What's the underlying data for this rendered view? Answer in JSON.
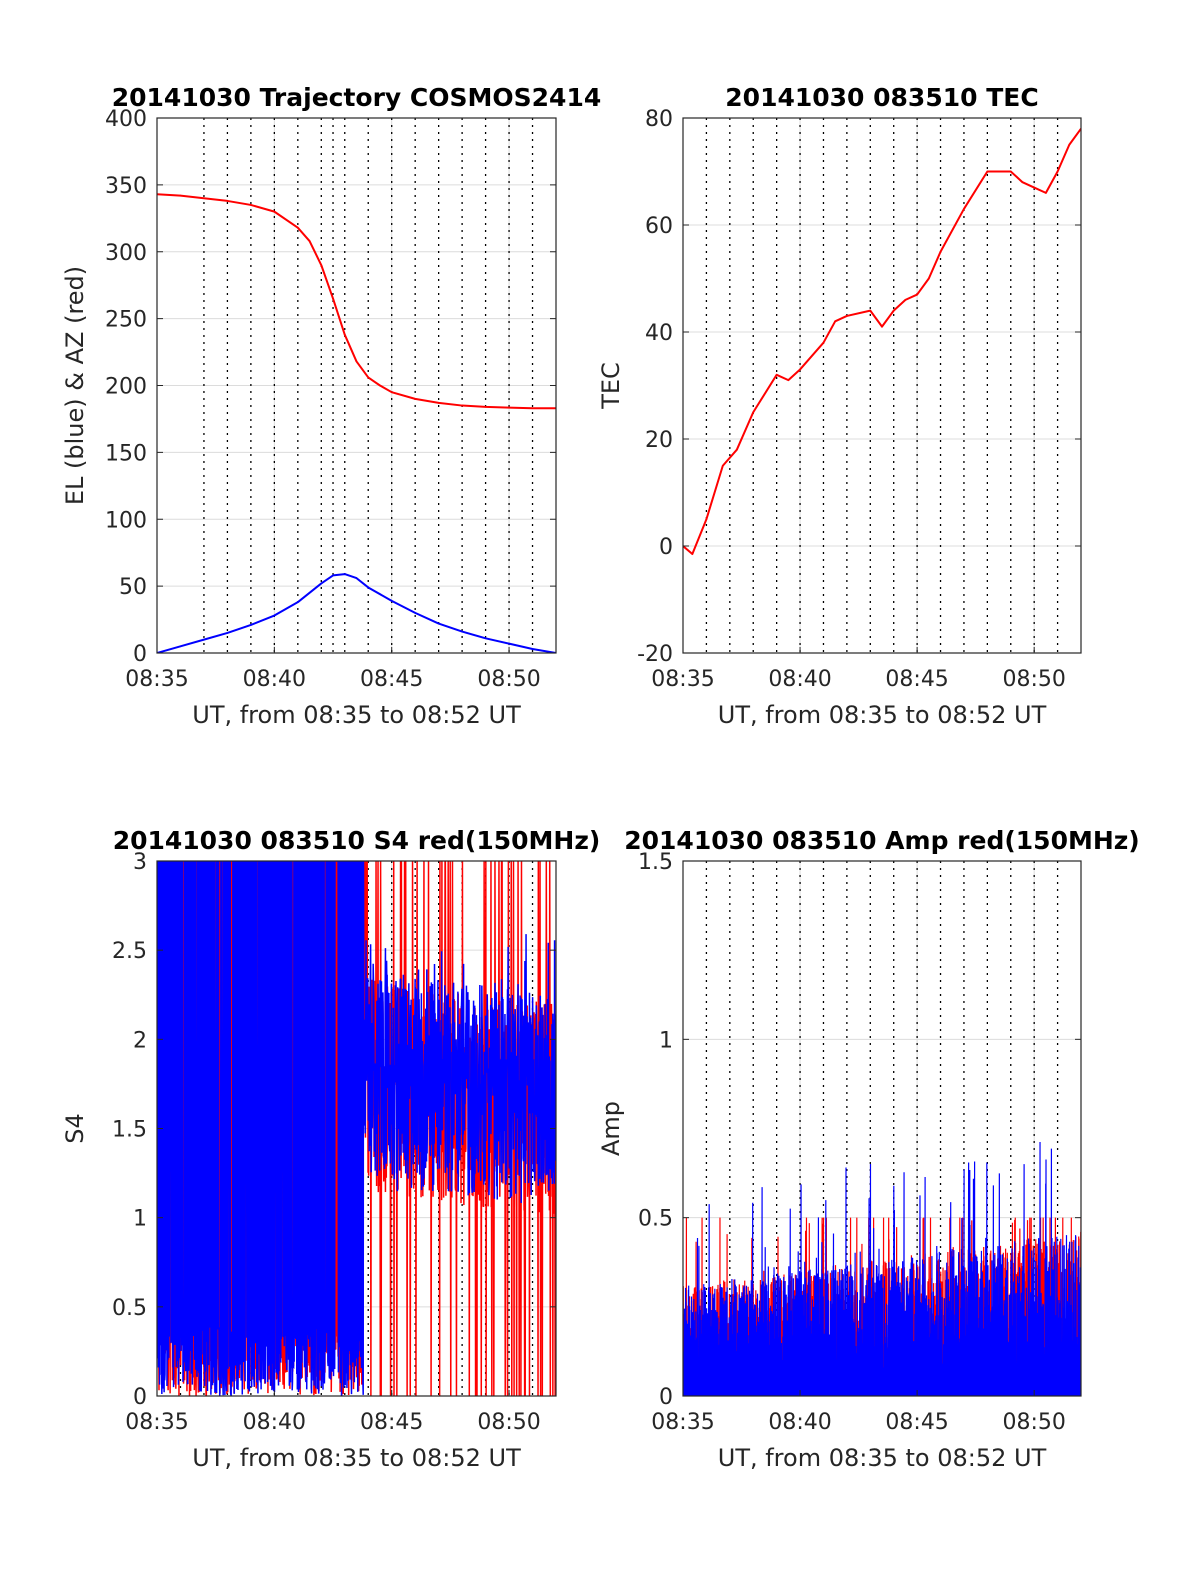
{
  "figure": {
    "background": "#ffffff",
    "colors": {
      "red": "#ff0000",
      "blue": "#0000ff",
      "grid": "#dcdcdc",
      "vline": "#000000"
    }
  },
  "chart_data": [
    {
      "type": "line",
      "title": "20141030 Trajectory COSMOS2414",
      "xlabel": "UT, from 08:35 to 08:52 UT",
      "ylabel": "EL (blue) & AZ (red)",
      "xlim_min": [
        0,
        17
      ],
      "ylim": [
        0,
        400
      ],
      "xticks_min": [
        0,
        5,
        10,
        15
      ],
      "xtick_labels": [
        "08:35",
        "08:40",
        "08:45",
        "08:50"
      ],
      "yticks": [
        0,
        50,
        100,
        150,
        200,
        250,
        300,
        350,
        400
      ],
      "ytick_labels": [
        "0",
        "50",
        "100",
        "150",
        "200",
        "250",
        "300",
        "350",
        "400"
      ],
      "grid": true,
      "dotted_vlines_min": [
        2,
        3,
        4,
        5,
        6,
        7,
        7.5,
        8,
        9,
        10,
        11,
        12,
        13,
        14,
        15,
        16
      ],
      "series": [
        {
          "color": "#ff0000",
          "x": [
            0,
            1,
            2,
            3,
            4,
            5,
            6,
            6.5,
            7,
            7.5,
            8,
            8.5,
            9,
            9.5,
            10,
            11,
            12,
            13,
            14,
            15,
            16,
            17
          ],
          "values": [
            343,
            342,
            340,
            338,
            335,
            330,
            318,
            308,
            290,
            265,
            238,
            218,
            206,
            200,
            195,
            190,
            187,
            185,
            184,
            183.5,
            183,
            183
          ]
        },
        {
          "color": "#0000ff",
          "x": [
            0,
            1,
            2,
            3,
            4,
            5,
            6,
            7,
            7.5,
            8,
            8.5,
            9,
            10,
            11,
            12,
            13,
            14,
            15,
            16,
            17
          ],
          "values": [
            0,
            5,
            10,
            15,
            21,
            28,
            38,
            52,
            58,
            59,
            56,
            49,
            39,
            30,
            22,
            16,
            11,
            7,
            3,
            0
          ]
        }
      ]
    },
    {
      "type": "line",
      "title": "20141030 083510 TEC",
      "xlabel": "UT, from 08:35 to 08:52 UT",
      "ylabel": "TEC",
      "xlim_min": [
        0,
        17
      ],
      "ylim": [
        -20,
        80
      ],
      "xticks_min": [
        0,
        5,
        10,
        15
      ],
      "xtick_labels": [
        "08:35",
        "08:40",
        "08:45",
        "08:50"
      ],
      "yticks": [
        -20,
        0,
        20,
        40,
        60,
        80
      ],
      "ytick_labels": [
        "-20",
        "0",
        "20",
        "40",
        "60",
        "80"
      ],
      "grid": true,
      "dotted_vlines_min": [
        1,
        2,
        3,
        4,
        5,
        6,
        7,
        8,
        9,
        10,
        11,
        12,
        13,
        14,
        15,
        16
      ],
      "series": [
        {
          "color": "#ff0000",
          "x": [
            0,
            0.4,
            1,
            1.7,
            2.3,
            3,
            4,
            4.5,
            5,
            6,
            6.5,
            7,
            8,
            8.5,
            9,
            9.5,
            10,
            10.5,
            11,
            12,
            13,
            14,
            14.5,
            15,
            15.5,
            16,
            16.5,
            17
          ],
          "values": [
            0,
            -1.5,
            5,
            15,
            18,
            25,
            32,
            31,
            33,
            38,
            42,
            43,
            44,
            41,
            44,
            46,
            47,
            50,
            55,
            63,
            70,
            70,
            68,
            67,
            66,
            70,
            75,
            78
          ]
        }
      ]
    },
    {
      "type": "line",
      "title": "20141030 083510 S4 red(150MHz)",
      "xlabel": "UT, from 08:35 to 08:52 UT",
      "ylabel": "S4",
      "xlim_min": [
        0,
        17
      ],
      "ylim": [
        0,
        3
      ],
      "xticks_min": [
        0,
        5,
        10,
        15
      ],
      "xtick_labels": [
        "08:35",
        "08:40",
        "08:45",
        "08:50"
      ],
      "yticks": [
        0,
        0.5,
        1,
        1.5,
        2,
        2.5,
        3
      ],
      "ytick_labels": [
        "0",
        "0.5",
        "1",
        "1.5",
        "2",
        "2.5",
        "3"
      ],
      "grid": true,
      "dotted_vlines_min": [
        1,
        2,
        3,
        4,
        5,
        6,
        7,
        8,
        9,
        10,
        11,
        12,
        13,
        14,
        15,
        16
      ],
      "series": [
        {
          "color": "#ff0000",
          "style": "noise",
          "x_range": [
            0,
            17
          ],
          "min": 0,
          "max": 3
        },
        {
          "color": "#0000ff",
          "style": "noise",
          "x_range": [
            0,
            17
          ],
          "min": 0,
          "max": 3
        }
      ]
    },
    {
      "type": "line",
      "title": "20141030 083510 Amp red(150MHz)",
      "xlabel": "UT, from 08:35 to 08:52 UT",
      "ylabel": "Amp",
      "xlim_min": [
        0,
        17
      ],
      "ylim": [
        0,
        1.5
      ],
      "xticks_min": [
        0,
        5,
        10,
        15
      ],
      "xtick_labels": [
        "08:35",
        "08:40",
        "08:45",
        "08:50"
      ],
      "yticks": [
        0,
        0.5,
        1,
        1.5
      ],
      "ytick_labels": [
        "0",
        "0.5",
        "1",
        "1.5"
      ],
      "grid": true,
      "dotted_vlines_min": [
        1,
        2,
        3,
        4,
        5,
        6,
        7,
        8,
        9,
        10,
        11,
        12,
        13,
        14,
        15,
        16
      ],
      "series": [
        {
          "color": "#ff0000",
          "style": "noise",
          "x_range": [
            0,
            17
          ],
          "min": 0,
          "max": 0.5
        },
        {
          "color": "#0000ff",
          "style": "noise",
          "x_range": [
            0,
            17
          ],
          "min": 0,
          "max": 1.0
        }
      ]
    }
  ]
}
